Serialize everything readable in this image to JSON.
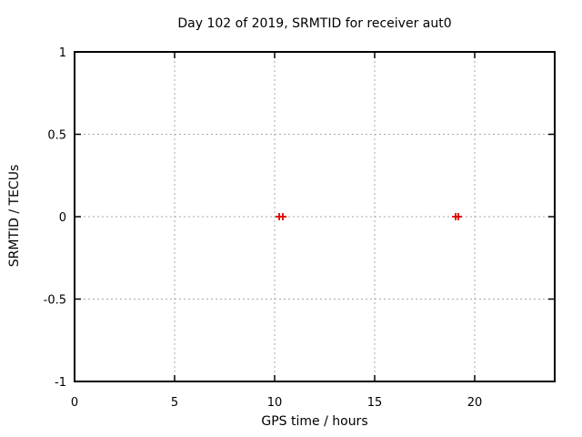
{
  "chart_data": {
    "type": "scatter",
    "title": "Day 102 of 2019, SRMTID for receiver aut0",
    "xlabel": "GPS time / hours",
    "ylabel": "SRMTID / TECUs",
    "xlim": [
      0,
      24
    ],
    "ylim": [
      -1,
      1
    ],
    "grid": true,
    "legend": "none",
    "marker": "plus",
    "marker_color": "#e00000",
    "grid_color": "#a9a9a9",
    "xticks": [
      {
        "v": 0,
        "label": "0"
      },
      {
        "v": 5,
        "label": "5"
      },
      {
        "v": 10,
        "label": "10"
      },
      {
        "v": 15,
        "label": "15"
      },
      {
        "v": 20,
        "label": "20"
      }
    ],
    "yticks": [
      {
        "v": -1,
        "label": "-1"
      },
      {
        "v": -0.5,
        "label": "-0.5"
      },
      {
        "v": 0,
        "label": "0"
      },
      {
        "v": 0.5,
        "label": "0.5"
      },
      {
        "v": 1,
        "label": "1"
      }
    ],
    "series": [
      {
        "name": "SRMTID",
        "points": [
          {
            "x": 10.23,
            "y": 0
          },
          {
            "x": 10.41,
            "y": 0
          },
          {
            "x": 19.05,
            "y": 0
          },
          {
            "x": 19.18,
            "y": 0
          }
        ]
      }
    ]
  }
}
